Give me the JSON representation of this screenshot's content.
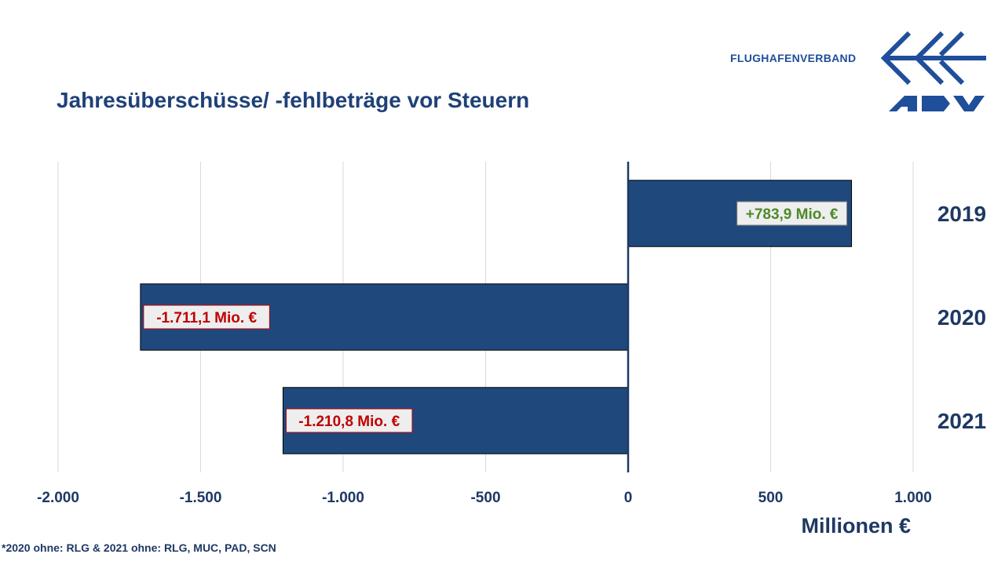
{
  "title": "Jahresüberschüsse/ -fehlbeträge vor Steuern",
  "brand": {
    "name": "FLUGHAFENVERBAND",
    "logo_text": "ADV",
    "logo_icon": "adv-airplane-chevron-icon"
  },
  "footnote": "*2020 ohne: RLG & 2021 ohne: RLG, MUC, PAD, SCN",
  "colors": {
    "bar": "#1f497d",
    "title": "#1f4178",
    "positive_label": "#4e8a2a",
    "negative_label": "#c00000",
    "grid": "#d9d9d9",
    "axis_text": "#1f3864"
  },
  "chart_data": {
    "type": "bar",
    "orientation": "horizontal",
    "categories": [
      "2019",
      "2020",
      "2021"
    ],
    "values": [
      783.9,
      -1711.1,
      -1210.8
    ],
    "data_labels": [
      "+783,9 Mio. €",
      "-1.711,1 Mio. €",
      "-1.210,8 Mio. €"
    ],
    "xlim": [
      -2000,
      1000
    ],
    "x_ticks": [
      -2000,
      -1500,
      -1000,
      -500,
      0,
      500,
      1000
    ],
    "x_tick_labels": [
      "-2.000",
      "-1.500",
      "-1.000",
      "-500",
      "0",
      "500",
      "1.000"
    ],
    "xlabel": "Millionen €",
    "grid": true,
    "legend": "none"
  }
}
